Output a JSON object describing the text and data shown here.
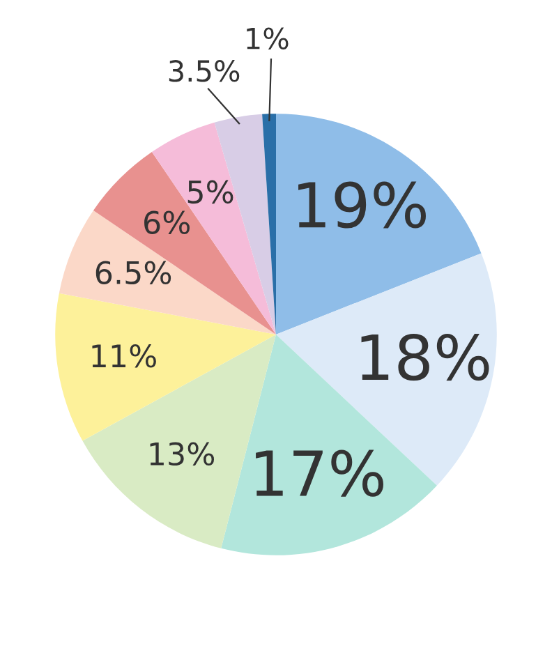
{
  "chart_data": {
    "type": "pie",
    "categories": [
      null,
      null,
      null,
      null,
      null,
      null,
      null,
      null,
      null,
      null
    ],
    "values": [
      19,
      18,
      17,
      13,
      11,
      6.5,
      6,
      5,
      3.5,
      1
    ],
    "value_labels": [
      "19%",
      "18%",
      "17%",
      "13%",
      "11%",
      "6.5%",
      "6%",
      "5%",
      "3.5%",
      "1%"
    ],
    "colors": [
      "#8fbde8",
      "#ddeaf8",
      "#b2e6dc",
      "#d9ebc4",
      "#fdf19a",
      "#fbd8c8",
      "#e8918f",
      "#f5bcd9",
      "#d8cde6",
      "#2a6fa8"
    ]
  }
}
